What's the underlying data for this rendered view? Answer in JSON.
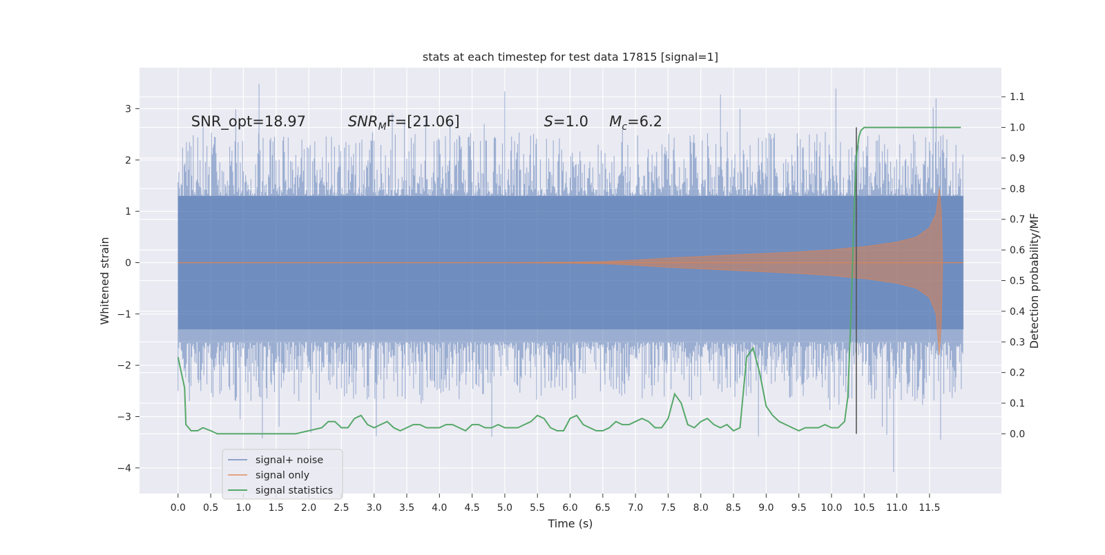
{
  "chart_data": {
    "type": "line",
    "title": "stats at each timestep for test data 17815 [signal=1]",
    "xlabel": "Time (s)",
    "ylabel": "Whitened strain",
    "y2label": "Detection probability/MF",
    "xlim": [
      -0.59,
      12.6
    ],
    "ylim": [
      -4.5,
      3.8
    ],
    "y2lim": [
      -0.195,
      1.195
    ],
    "x_ticks": [
      0.0,
      0.5,
      1.0,
      1.5,
      2.0,
      2.5,
      3.0,
      3.5,
      4.0,
      4.5,
      5.0,
      5.5,
      6.0,
      6.5,
      7.0,
      7.5,
      8.0,
      8.5,
      9.0,
      9.5,
      10.0,
      10.5,
      11.0,
      11.5
    ],
    "x_tick_labels": [
      "0.0",
      "0.5",
      "1.0",
      "1.5",
      "2.0",
      "2.5",
      "3.0",
      "3.5",
      "4.0",
      "4.5",
      "5.0",
      "5.5",
      "6.0",
      "6.5",
      "7.0",
      "7.5",
      "8.0",
      "8.5",
      "9.0",
      "9.5",
      "10.0",
      "10.5",
      "11.0",
      "11.5"
    ],
    "y_ticks": [
      -4,
      -3,
      -2,
      -1,
      0,
      1,
      2,
      3
    ],
    "y_tick_labels": [
      "−4",
      "−3",
      "−2",
      "−1",
      "0",
      "1",
      "2",
      "3"
    ],
    "y2_ticks": [
      0.0,
      0.1,
      0.2,
      0.3,
      0.4,
      0.5,
      0.6,
      0.7,
      0.8,
      0.9,
      1.0,
      1.1
    ],
    "y2_tick_labels": [
      "0.0",
      "0.1",
      "0.2",
      "0.3",
      "0.4",
      "0.5",
      "0.6",
      "0.7",
      "0.8",
      "0.9",
      "1.0",
      "1.1"
    ],
    "grid": true,
    "legend_position": "lower-left",
    "colors": {
      "background": "#eaeaf2",
      "grid": "#ffffff",
      "noise": "#4c72b0",
      "signal": "#dd8452",
      "stats": "#55a868",
      "vline": "#555555"
    },
    "annotations": [
      {
        "id": "snr-opt",
        "text": "SNR_opt=18.97",
        "x": 0.2,
        "y": 2.75
      },
      {
        "id": "snr-mf",
        "text": "SNR_MF=[21.06]",
        "main": "SNR",
        "sub": "M",
        "rest": "F=[21.06]",
        "x": 2.6,
        "y": 2.75
      },
      {
        "id": "s-value",
        "text": "S=1.0",
        "main": "S",
        "rest": "=1.0",
        "x": 5.6,
        "y": 2.75
      },
      {
        "id": "mc-value",
        "text": "M_c=6.2",
        "main": "M",
        "sub": "c",
        "rest": "=6.2",
        "x": 6.6,
        "y": 2.75
      }
    ],
    "detection_time": 10.38,
    "series": [
      {
        "name": "signal+ noise",
        "axis": "left",
        "kind": "noise-envelope",
        "x_range": [
          0.0,
          12.02
        ],
        "core_amplitude": 1.3,
        "typical_upper": [
          1.3,
          2.3
        ],
        "typical_lower": [
          -1.6,
          -2.4
        ],
        "extreme_high": 3.48,
        "extreme_low": -4.08
      },
      {
        "name": "signal only",
        "axis": "left",
        "kind": "chirp-envelope",
        "x_range": [
          0.0,
          12.02
        ],
        "envelope_x": [
          0.0,
          5.0,
          6.0,
          6.5,
          7.0,
          7.5,
          8.0,
          8.5,
          9.0,
          9.5,
          10.0,
          10.38,
          10.5,
          11.0,
          11.3,
          11.5,
          11.6,
          11.65,
          11.68,
          11.7,
          12.02
        ],
        "envelope_amplitude": [
          0.0,
          0.0,
          0.01,
          0.02,
          0.05,
          0.09,
          0.12,
          0.15,
          0.18,
          0.21,
          0.25,
          0.3,
          0.31,
          0.4,
          0.5,
          0.68,
          0.95,
          1.45,
          1.0,
          0.0,
          0.0
        ],
        "envelope_lower": [
          0.0,
          0.0,
          -0.01,
          -0.02,
          -0.05,
          -0.09,
          -0.12,
          -0.15,
          -0.18,
          -0.21,
          -0.25,
          -0.3,
          -0.31,
          -0.4,
          -0.5,
          -0.68,
          -1.0,
          -1.8,
          -1.2,
          0.0,
          0.0
        ]
      },
      {
        "name": "signal statistics",
        "axis": "right",
        "kind": "line",
        "x": [
          0.0,
          0.1,
          0.12,
          0.2,
          0.3,
          0.38,
          0.5,
          0.6,
          0.7,
          0.8,
          1.0,
          1.2,
          1.4,
          1.6,
          1.8,
          2.0,
          2.2,
          2.3,
          2.4,
          2.5,
          2.6,
          2.7,
          2.8,
          2.9,
          3.0,
          3.1,
          3.2,
          3.3,
          3.4,
          3.5,
          3.6,
          3.7,
          3.8,
          3.9,
          4.0,
          4.1,
          4.2,
          4.3,
          4.4,
          4.5,
          4.6,
          4.7,
          4.8,
          4.9,
          5.0,
          5.1,
          5.2,
          5.3,
          5.4,
          5.5,
          5.6,
          5.7,
          5.8,
          5.9,
          6.0,
          6.1,
          6.2,
          6.3,
          6.4,
          6.5,
          6.6,
          6.7,
          6.8,
          6.9,
          7.0,
          7.1,
          7.2,
          7.3,
          7.4,
          7.5,
          7.6,
          7.7,
          7.8,
          7.9,
          8.0,
          8.1,
          8.2,
          8.3,
          8.4,
          8.5,
          8.6,
          8.7,
          8.8,
          8.9,
          9.0,
          9.1,
          9.2,
          9.3,
          9.4,
          9.5,
          9.6,
          9.7,
          9.8,
          9.9,
          10.0,
          10.1,
          10.2,
          10.25,
          10.3,
          10.35,
          10.38,
          10.42,
          10.45,
          10.5,
          10.6,
          10.8,
          11.0,
          11.5,
          11.98
        ],
        "y": [
          0.25,
          0.15,
          0.03,
          0.01,
          0.01,
          0.02,
          0.01,
          0.0,
          0.0,
          0.0,
          0.0,
          0.0,
          0.0,
          0.0,
          0.0,
          0.01,
          0.02,
          0.04,
          0.04,
          0.02,
          0.02,
          0.05,
          0.06,
          0.03,
          0.02,
          0.03,
          0.04,
          0.02,
          0.01,
          0.02,
          0.03,
          0.03,
          0.02,
          0.02,
          0.02,
          0.03,
          0.03,
          0.02,
          0.01,
          0.03,
          0.03,
          0.02,
          0.02,
          0.03,
          0.02,
          0.02,
          0.02,
          0.03,
          0.04,
          0.06,
          0.05,
          0.02,
          0.01,
          0.01,
          0.05,
          0.06,
          0.03,
          0.02,
          0.01,
          0.01,
          0.02,
          0.04,
          0.03,
          0.03,
          0.04,
          0.05,
          0.04,
          0.02,
          0.02,
          0.05,
          0.13,
          0.1,
          0.03,
          0.02,
          0.04,
          0.05,
          0.03,
          0.02,
          0.03,
          0.01,
          0.02,
          0.25,
          0.28,
          0.2,
          0.09,
          0.06,
          0.04,
          0.03,
          0.02,
          0.01,
          0.02,
          0.02,
          0.02,
          0.03,
          0.02,
          0.02,
          0.04,
          0.12,
          0.4,
          0.75,
          0.9,
          0.97,
          0.99,
          1.0,
          1.0,
          1.0,
          1.0,
          1.0,
          1.0
        ]
      }
    ]
  }
}
